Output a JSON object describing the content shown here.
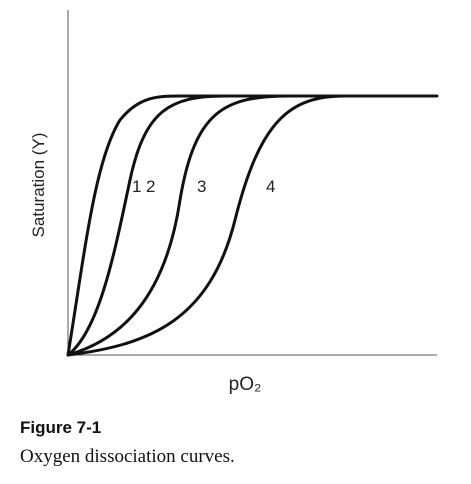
{
  "diagram": {
    "y_axis_label": "Saturation (Y)",
    "x_axis_label": "pO₂",
    "curves": [
      {
        "label": "1"
      },
      {
        "label": "2"
      },
      {
        "label": "3"
      },
      {
        "label": "4"
      }
    ]
  },
  "caption": {
    "figure": "Figure 7-1",
    "text": "Oxygen dissociation curves."
  }
}
